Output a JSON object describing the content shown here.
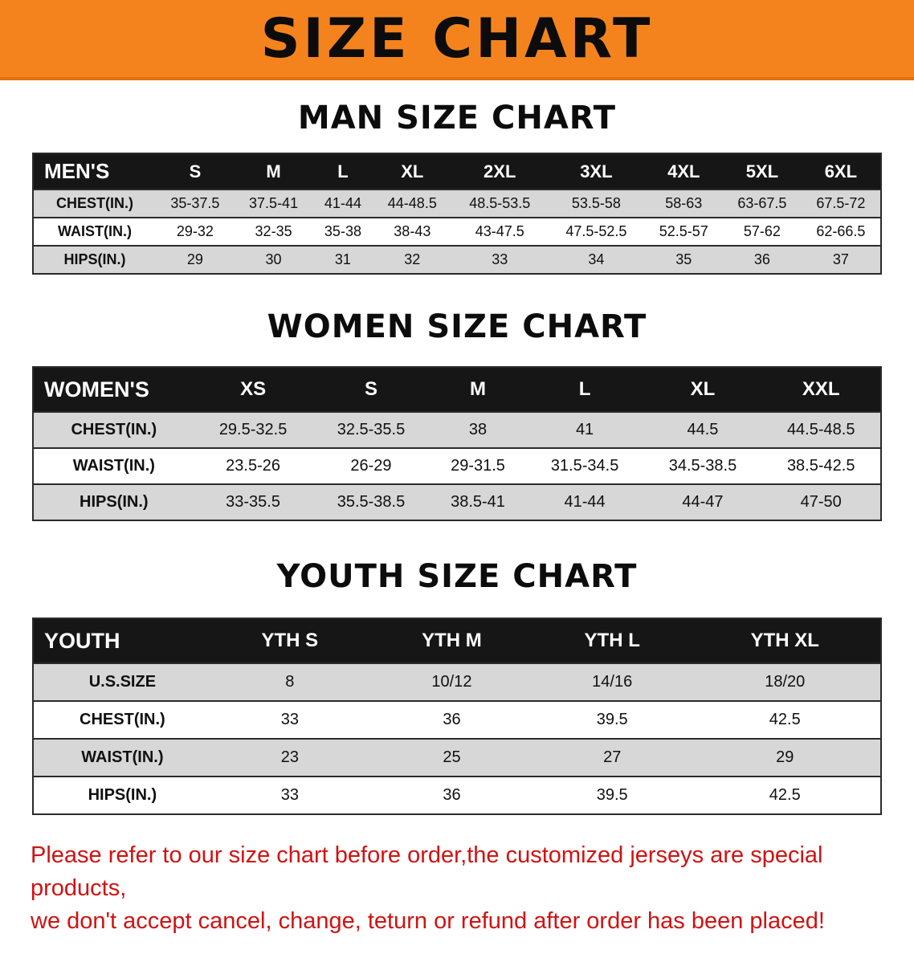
{
  "banner": {
    "title": "SIZE CHART"
  },
  "colors": {
    "banner_bg": "#f5831d",
    "header_bg": "#161616",
    "row_alt": "#d7d7d7",
    "red": "#d11212"
  },
  "sections": [
    {
      "heading": "MAN SIZE CHART",
      "table": {
        "header": [
          "MEN'S",
          "S",
          "M",
          "L",
          "XL",
          "2XL",
          "3XL",
          "4XL",
          "5XL",
          "6XL"
        ],
        "rows": [
          [
            "CHEST(IN.)",
            "35-37.5",
            "37.5-41",
            "41-44",
            "44-48.5",
            "48.5-53.5",
            "53.5-58",
            "58-63",
            "63-67.5",
            "67.5-72"
          ],
          [
            "WAIST(IN.)",
            "29-32",
            "32-35",
            "35-38",
            "38-43",
            "43-47.5",
            "47.5-52.5",
            "52.5-57",
            "57-62",
            "62-66.5"
          ],
          [
            "HIPS(IN.)",
            "29",
            "30",
            "31",
            "32",
            "33",
            "34",
            "35",
            "36",
            "37"
          ]
        ]
      }
    },
    {
      "heading": "WOMEN SIZE CHART",
      "table": {
        "header": [
          "WOMEN'S",
          "XS",
          "S",
          "M",
          "L",
          "XL",
          "XXL"
        ],
        "rows": [
          [
            "CHEST(IN.)",
            "29.5-32.5",
            "32.5-35.5",
            "38",
            "41",
            "44.5",
            "44.5-48.5"
          ],
          [
            "WAIST(IN.)",
            "23.5-26",
            "26-29",
            "29-31.5",
            "31.5-34.5",
            "34.5-38.5",
            "38.5-42.5"
          ],
          [
            "HIPS(IN.)",
            "33-35.5",
            "35.5-38.5",
            "38.5-41",
            "41-44",
            "44-47",
            "47-50"
          ]
        ]
      }
    },
    {
      "heading": "YOUTH SIZE CHART",
      "table": {
        "header": [
          "YOUTH",
          "YTH S",
          "YTH M",
          "YTH L",
          "YTH XL"
        ],
        "rows": [
          [
            "U.S.SIZE",
            "8",
            "10/12",
            "14/16",
            "18/20"
          ],
          [
            "CHEST(IN.)",
            "33",
            "36",
            "39.5",
            "42.5"
          ],
          [
            "WAIST(IN.)",
            "23",
            "25",
            "27",
            "29"
          ],
          [
            "HIPS(IN.)",
            "33",
            "36",
            "39.5",
            "42.5"
          ]
        ]
      }
    }
  ],
  "disclaimer": {
    "line1": "Please refer to our size chart before order,the customized jerseys are special products,",
    "line2": "we don't accept cancel, change, teturn or refund after order has been placed!"
  }
}
